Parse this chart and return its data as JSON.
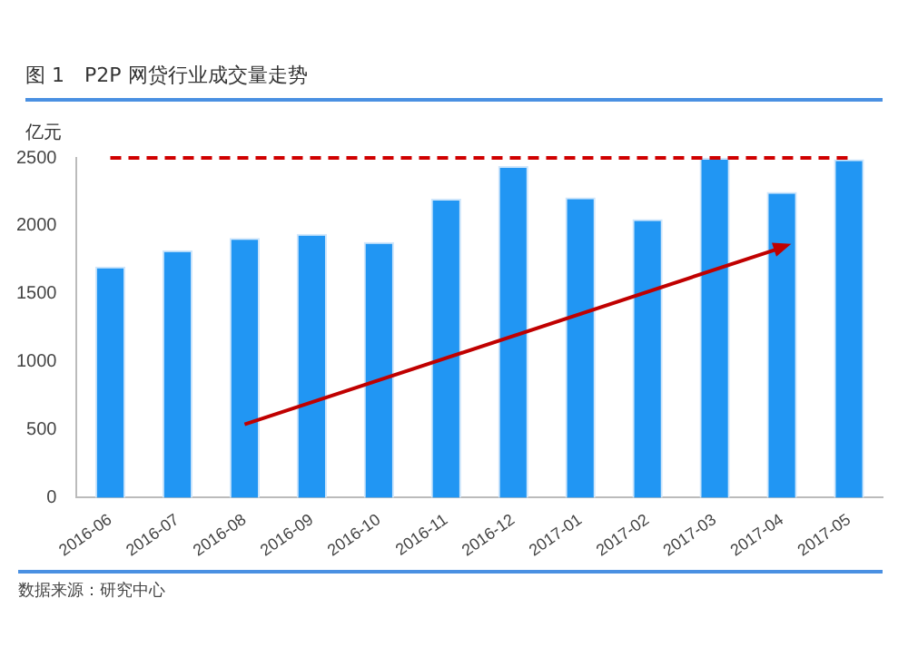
{
  "chart_data": {
    "type": "bar",
    "title": "图 1　P2P 网贷行业成交量走势",
    "ylabel": "亿元",
    "categories": [
      "2016-06",
      "2016-07",
      "2016-08",
      "2016-09",
      "2016-10",
      "2016-11",
      "2016-12",
      "2017-01",
      "2017-02",
      "2017-03",
      "2017-04",
      "2017-05"
    ],
    "series": [
      {
        "color": "#2196f3",
        "values": [
          1700,
          1820,
          1910,
          1940,
          1880,
          2200,
          2440,
          2210,
          2050,
          2500,
          2250,
          2490
        ]
      },
      {
        "type": "line",
        "color": "#c00000",
        "values": [
          null,
          null,
          540,
          null,
          null,
          null,
          null,
          null,
          null,
          null,
          1840,
          null
        ]
      }
    ],
    "ylim": [
      0,
      2500
    ],
    "yticks": [
      0,
      500,
      1000,
      1500,
      2000,
      2500
    ],
    "ref_lines": [
      {
        "axis": "y",
        "value": 2500,
        "color": "#d00000",
        "line_style": "dashed"
      }
    ],
    "annotations": [
      "数据来源：研究中心"
    ],
    "grid": false,
    "legend": false
  }
}
